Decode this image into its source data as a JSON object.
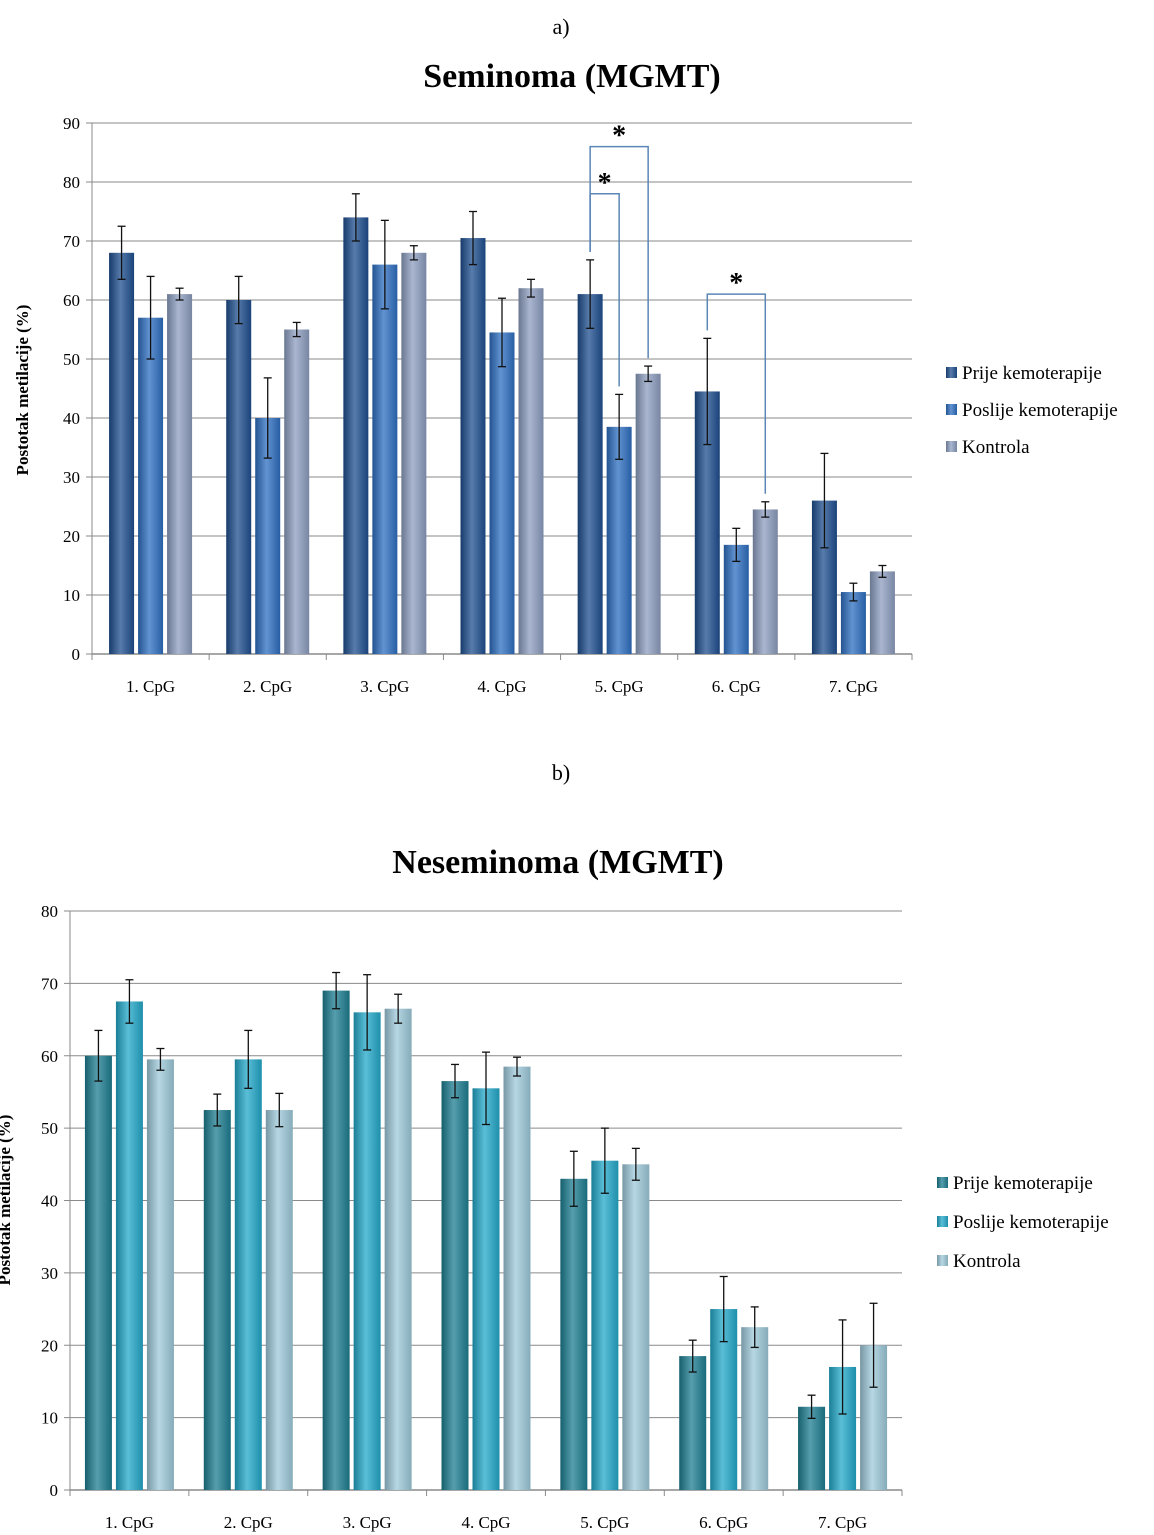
{
  "colors": {
    "seminoma": [
      "#1f4f8f",
      "#2e6fc1",
      "#8d9ec0"
    ],
    "neseminoma": [
      "#1d7e91",
      "#23a8c9",
      "#9ec9da"
    ],
    "grid": "#8a8a8a",
    "bracket": "#5b86b6"
  },
  "chart_data": [
    {
      "type": "bar",
      "panel_label": "a)",
      "title": "Seminoma (MGMT)",
      "xlabel": "",
      "ylabel": "Postotak metilacije (%)",
      "ylim": [
        0,
        90
      ],
      "yticks": [
        0,
        10,
        20,
        30,
        40,
        50,
        60,
        70,
        80,
        90
      ],
      "grid": true,
      "legend_position": "right",
      "categories": [
        "1. CpG",
        "2. CpG",
        "3. CpG",
        "4. CpG",
        "5. CpG",
        "6. CpG",
        "7. CpG"
      ],
      "series": [
        {
          "name": "Prije kemoterapije",
          "values": [
            68,
            60,
            74,
            70.5,
            61,
            44.5,
            26
          ],
          "errors": [
            4.5,
            4,
            4,
            4.5,
            5.8,
            9,
            8
          ]
        },
        {
          "name": "Poslije kemoterapije",
          "values": [
            57,
            40,
            66,
            54.5,
            38.5,
            18.5,
            10.5
          ],
          "errors": [
            7,
            6.8,
            7.5,
            5.8,
            5.5,
            2.8,
            1.5
          ]
        },
        {
          "name": "Kontrola",
          "values": [
            61,
            55,
            68,
            62,
            47.5,
            24.5,
            14
          ],
          "errors": [
            1,
            1.2,
            1.2,
            1.5,
            1.3,
            1.3,
            1
          ]
        }
      ],
      "significance": [
        {
          "label": "*",
          "from": [
            4,
            0
          ],
          "to": [
            4,
            1
          ],
          "top": 78
        },
        {
          "label": "*",
          "from": [
            4,
            0
          ],
          "to": [
            4,
            2
          ],
          "top": 86
        },
        {
          "label": "*",
          "from": [
            5,
            0
          ],
          "to": [
            5,
            2
          ],
          "top": 61
        }
      ]
    },
    {
      "type": "bar",
      "panel_label": "b)",
      "title": "Neseminoma (MGMT)",
      "xlabel": "",
      "ylabel": "Postotak metilacije (%)",
      "ylim": [
        0,
        80
      ],
      "yticks": [
        0,
        10,
        20,
        30,
        40,
        50,
        60,
        70,
        80
      ],
      "grid": true,
      "legend_position": "right",
      "categories": [
        "1. CpG",
        "2. CpG",
        "3. CpG",
        "4. CpG",
        "5. CpG",
        "6. CpG",
        "7. CpG"
      ],
      "series": [
        {
          "name": "Prije kemoterapije",
          "values": [
            60,
            52.5,
            69,
            56.5,
            43,
            18.5,
            11.5
          ],
          "errors": [
            3.5,
            2.2,
            2.5,
            2.3,
            3.8,
            2.2,
            1.6
          ]
        },
        {
          "name": "Poslije kemoterapije",
          "values": [
            67.5,
            59.5,
            66,
            55.5,
            45.5,
            25,
            17
          ],
          "errors": [
            3,
            4,
            5.2,
            5,
            4.5,
            4.5,
            6.5
          ]
        },
        {
          "name": "Kontrola",
          "values": [
            59.5,
            52.5,
            66.5,
            58.5,
            45,
            22.5,
            20
          ],
          "errors": [
            1.5,
            2.3,
            2,
            1.3,
            2.2,
            2.8,
            5.8
          ]
        }
      ],
      "significance": []
    }
  ]
}
